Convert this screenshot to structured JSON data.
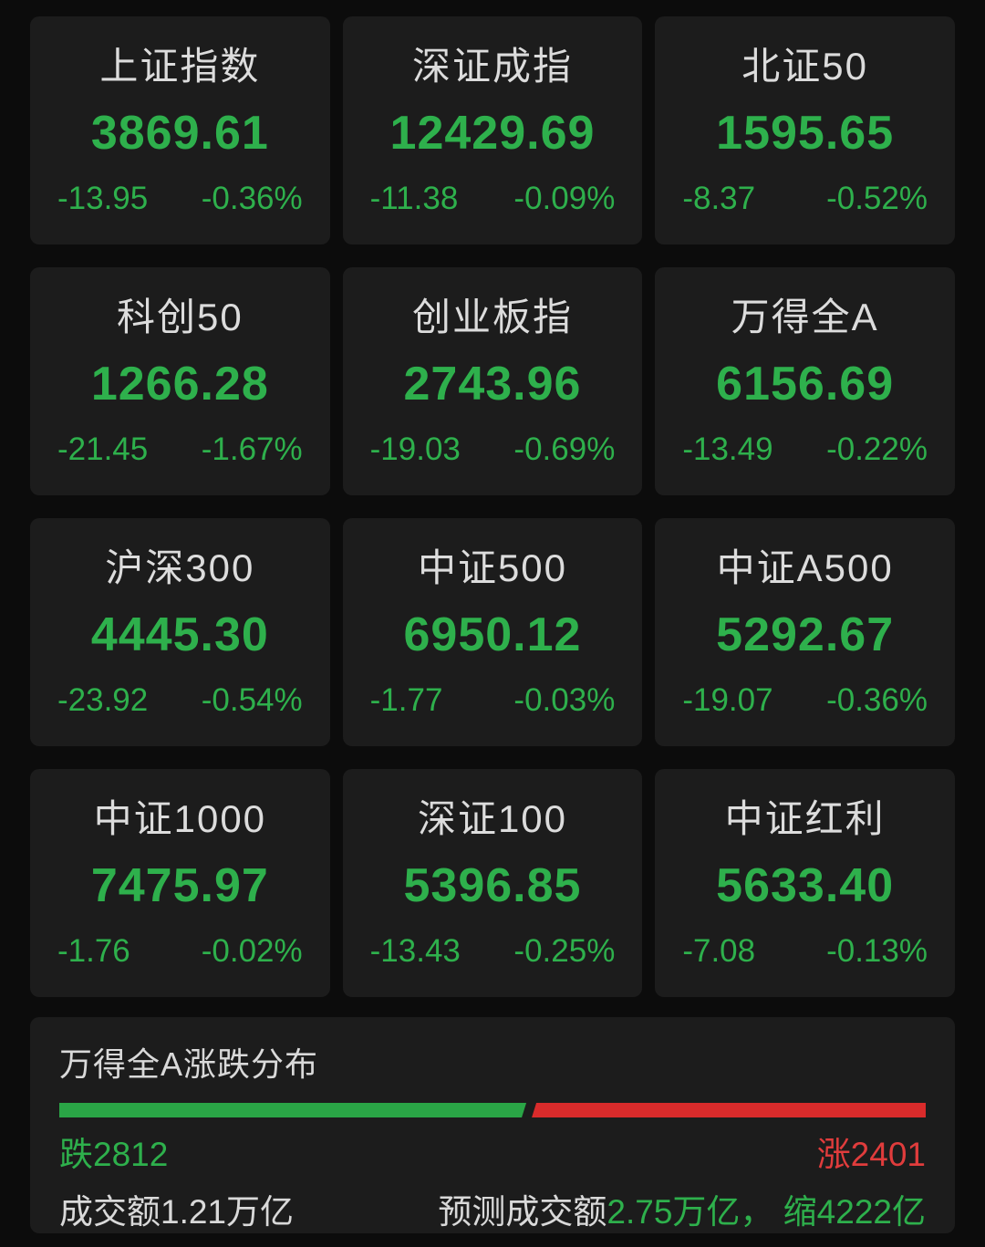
{
  "colors": {
    "text_green": "#2eb04c",
    "text_red": "#e03c3c",
    "bar_green": "#2aa546",
    "bar_red": "#d92b2b"
  },
  "indices": [
    {
      "name": "上证指数",
      "value": "3869.61",
      "change": "-13.95",
      "change_pct": "-0.36%"
    },
    {
      "name": "深证成指",
      "value": "12429.69",
      "change": "-11.38",
      "change_pct": "-0.09%"
    },
    {
      "name": "北证50",
      "value": "1595.65",
      "change": "-8.37",
      "change_pct": "-0.52%"
    },
    {
      "name": "科创50",
      "value": "1266.28",
      "change": "-21.45",
      "change_pct": "-1.67%"
    },
    {
      "name": "创业板指",
      "value": "2743.96",
      "change": "-19.03",
      "change_pct": "-0.69%"
    },
    {
      "name": "万得全A",
      "value": "6156.69",
      "change": "-13.49",
      "change_pct": "-0.22%"
    },
    {
      "name": "沪深300",
      "value": "4445.30",
      "change": "-23.92",
      "change_pct": "-0.54%"
    },
    {
      "name": "中证500",
      "value": "6950.12",
      "change": "-1.77",
      "change_pct": "-0.03%"
    },
    {
      "name": "中证A500",
      "value": "5292.67",
      "change": "-19.07",
      "change_pct": "-0.36%"
    },
    {
      "name": "中证1000",
      "value": "7475.97",
      "change": "-1.76",
      "change_pct": "-0.02%"
    },
    {
      "name": "深证100",
      "value": "5396.85",
      "change": "-13.43",
      "change_pct": "-0.25%"
    },
    {
      "name": "中证红利",
      "value": "5633.40",
      "change": "-7.08",
      "change_pct": "-0.13%"
    }
  ],
  "distribution": {
    "title": "万得全A涨跌分布",
    "down_label": "跌2812",
    "up_label": "涨2401",
    "down_count": 2812,
    "up_count": 2401
  },
  "turnover": {
    "actual": "成交额1.21万亿",
    "forecast_prefix": "预测成交额",
    "forecast_value": "2.75万亿， 缩4222亿"
  }
}
